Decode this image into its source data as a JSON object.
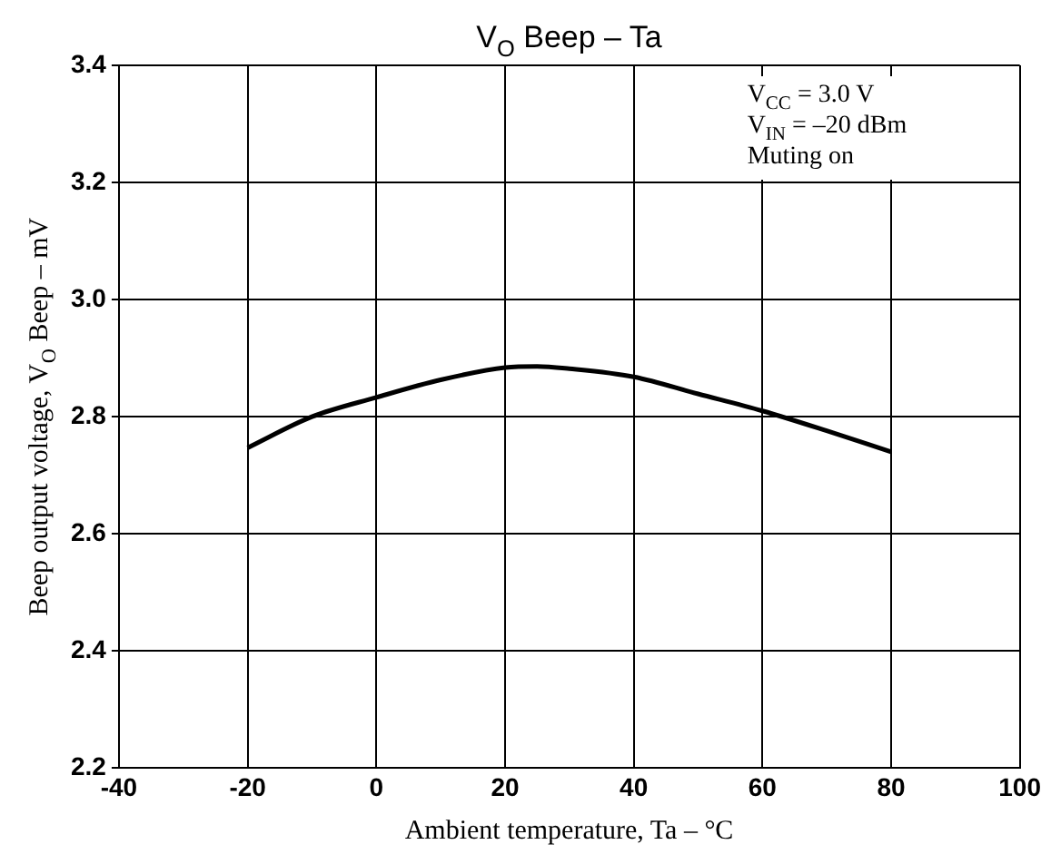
{
  "chart_data": {
    "type": "line",
    "title": "V$_{O}$ Beep – Ta",
    "xlabel": "Ambient temperature, Ta – °C",
    "ylabel": "Beep output voltage, V$_{O}$ Beep – mV",
    "x": [
      -20,
      -10,
      0,
      10,
      20,
      25,
      30,
      40,
      50,
      60,
      70,
      80
    ],
    "series": [
      {
        "color": "#000000",
        "values": [
          2.747,
          2.8,
          2.833,
          2.863,
          2.884,
          2.886,
          2.882,
          2.868,
          2.839,
          2.81,
          2.776,
          2.74
        ]
      }
    ],
    "xlim": [
      -40,
      100
    ],
    "xticks": [
      -40,
      -20,
      0,
      20,
      40,
      60,
      80,
      100
    ],
    "ylim": [
      2.2,
      3.4
    ],
    "yticks": [
      2.2,
      2.4,
      2.6,
      2.8,
      {
        "value": 3,
        "label": "3.0"
      },
      3.2,
      3.4
    ],
    "grid": true,
    "legend": false,
    "marker": "none",
    "line_style": "solid",
    "annotations": [
      "V$_{CC}$ = 3.0 V",
      "V$_{IN}$ = –20 dBm",
      "Muting on"
    ]
  }
}
